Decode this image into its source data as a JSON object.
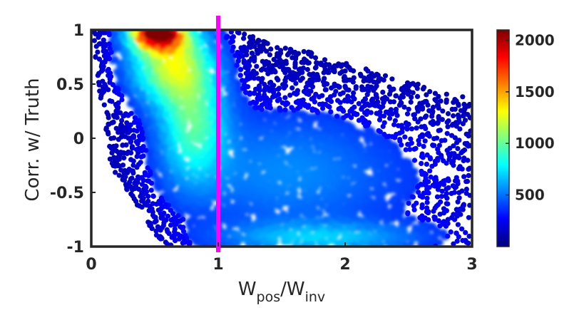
{
  "chart_data": {
    "type": "scatter",
    "xlabel": {
      "main": "W",
      "sub1": "pos",
      "sep": "/W",
      "sub2": "inv"
    },
    "ylabel": "Corr. w/ Truth",
    "xlim": [
      0,
      3
    ],
    "ylim": [
      -1,
      1
    ],
    "xticks": [
      0,
      1,
      2,
      3
    ],
    "xtick_labels": [
      "0",
      "1",
      "2",
      "3"
    ],
    "yticks": [
      -1,
      -0.5,
      0,
      0.5,
      1
    ],
    "ytick_labels": [
      "-1",
      "-0.5",
      "0",
      "0.5",
      "1"
    ],
    "grid": false,
    "vertical_line": {
      "x": 1.0,
      "color": "#ff00ff"
    },
    "colorbar": {
      "colormap": "jet",
      "range": [
        0,
        2100
      ],
      "ticks": [
        500,
        1000,
        1500,
        2000
      ],
      "tick_labels": [
        "500",
        "1000",
        "1500",
        "2000"
      ]
    },
    "density_clusters": [
      {
        "x": 0.52,
        "y": 0.93,
        "peak_count": 2100
      },
      {
        "x": 0.72,
        "y": 0.35,
        "peak_count": 800
      },
      {
        "x": 1.8,
        "y": -0.9,
        "peak_count": 420
      },
      {
        "x": 1.45,
        "y": -0.3,
        "peak_count": 250
      }
    ]
  }
}
